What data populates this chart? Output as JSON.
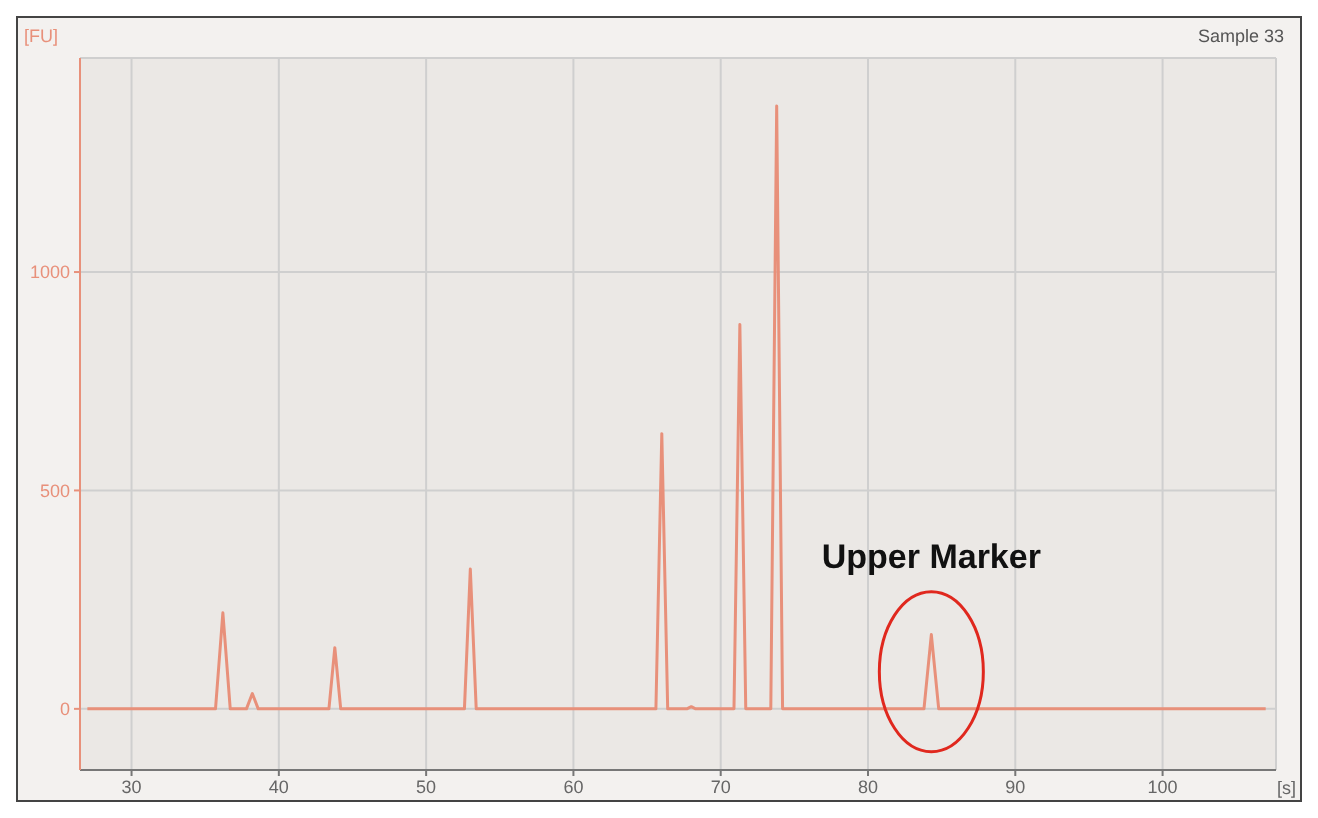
{
  "chart_data": {
    "type": "line",
    "subtitle": "Sample 33",
    "xlabel": "[s]",
    "ylabel": "[FU]",
    "x": [
      27,
      35.7,
      36.2,
      36.7,
      37.8,
      38.2,
      38.6,
      43.4,
      43.8,
      44.2,
      52.6,
      53.0,
      53.4,
      65.6,
      66.0,
      66.4,
      67.7,
      68.0,
      68.3,
      70.9,
      71.3,
      71.7,
      73.4,
      73.8,
      74.2,
      83.8,
      84.3,
      84.8,
      107
    ],
    "series": [
      {
        "color": "#e8907a",
        "values": [
          0,
          0,
          220,
          0,
          0,
          35,
          0,
          0,
          140,
          0,
          0,
          320,
          0,
          0,
          630,
          0,
          0,
          5,
          0,
          0,
          880,
          0,
          0,
          1380,
          0,
          0,
          170,
          0,
          0
        ]
      }
    ],
    "xlim": [
      26.5,
      107.7
    ],
    "ylim": [
      -140,
      1490
    ],
    "xticks": [
      30,
      40,
      50,
      60,
      70,
      80,
      90,
      100
    ],
    "yticks": [
      0,
      500,
      1000
    ],
    "grid": true,
    "marker": "none",
    "line_style": "solid",
    "annotations": [
      {
        "text": "Upper Marker",
        "x": 84.3,
        "y": 170
      }
    ]
  }
}
